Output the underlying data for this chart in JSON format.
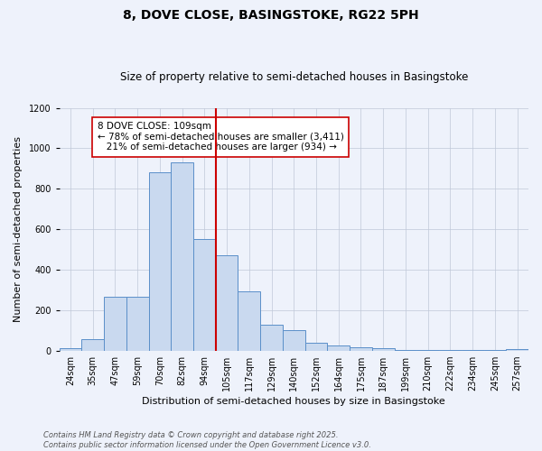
{
  "title1": "8, DOVE CLOSE, BASINGSTOKE, RG22 5PH",
  "title2": "Size of property relative to semi-detached houses in Basingstoke",
  "xlabel": "Distribution of semi-detached houses by size in Basingstoke",
  "ylabel": "Number of semi-detached properties",
  "bar_labels": [
    "24sqm",
    "35sqm",
    "47sqm",
    "59sqm",
    "70sqm",
    "82sqm",
    "94sqm",
    "105sqm",
    "117sqm",
    "129sqm",
    "140sqm",
    "152sqm",
    "164sqm",
    "175sqm",
    "187sqm",
    "199sqm",
    "210sqm",
    "222sqm",
    "234sqm",
    "245sqm",
    "257sqm"
  ],
  "bar_values": [
    10,
    57,
    265,
    265,
    880,
    930,
    550,
    470,
    295,
    130,
    100,
    37,
    25,
    18,
    10,
    5,
    5,
    2,
    2,
    2,
    8
  ],
  "bar_color": "#c9d9ef",
  "bar_edge_color": "#5b8fc9",
  "vline_color": "#cc0000",
  "vline_x_index": 7,
  "annotation_text": "8 DOVE CLOSE: 109sqm\n← 78% of semi-detached houses are smaller (3,411)\n   21% of semi-detached houses are larger (934) →",
  "annotation_box_color": "#ffffff",
  "annotation_box_edge": "#cc0000",
  "ylim": [
    0,
    1200
  ],
  "yticks": [
    0,
    200,
    400,
    600,
    800,
    1000,
    1200
  ],
  "background_color": "#eef2fb",
  "plot_background": "#eef2fb",
  "footer": "Contains HM Land Registry data © Crown copyright and database right 2025.\nContains public sector information licensed under the Open Government Licence v3.0.",
  "title1_fontsize": 10,
  "title2_fontsize": 8.5,
  "axis_label_fontsize": 8,
  "tick_fontsize": 7,
  "annotation_fontsize": 7.5,
  "footer_fontsize": 6
}
